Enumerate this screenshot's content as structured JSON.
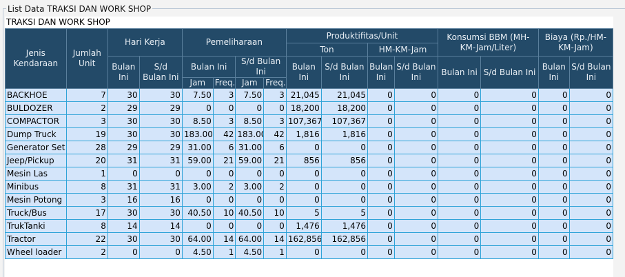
{
  "window": {
    "legend": "List Data TRAKSI DAN WORK SHOP"
  },
  "panel": {
    "title": "TRAKSI DAN WORK SHOP"
  },
  "headers": {
    "jenis": "Jenis Kendaraan",
    "jumlah": "Jumlah Unit",
    "hari_kerja": "Hari Kerja",
    "pemeliharaan": "Pemeliharaan",
    "produktifitas": "Produktifitas/Unit",
    "ton": "Ton",
    "hm_km_jam": "HM-KM-Jam",
    "konsumsi": "Konsumsi BBM (MH-KM-Jam/Liter)",
    "biaya": "Biaya (Rp./HM-KM-Jam)",
    "bulan_ini": "Bulan Ini",
    "sd_bulan_ini": "S/d Bulan Ini",
    "jam": "Jam",
    "freq": "Freq."
  },
  "rows": [
    [
      "BACKHOE",
      "7",
      "30",
      "30",
      "7.50",
      "3",
      "7.50",
      "3",
      "21,045",
      "21,045",
      "0",
      "0",
      "0",
      "0",
      "0",
      "0"
    ],
    [
      "BULDOZER",
      "2",
      "29",
      "29",
      "0",
      "0",
      "0",
      "0",
      "18,200",
      "18,200",
      "0",
      "0",
      "0",
      "0",
      "0",
      "0"
    ],
    [
      "COMPACTOR",
      "3",
      "30",
      "30",
      "8.50",
      "3",
      "8.50",
      "3",
      "107,367",
      "107,367",
      "0",
      "0",
      "0",
      "0",
      "0",
      "0"
    ],
    [
      "Dump Truck",
      "19",
      "30",
      "30",
      "183.00",
      "42",
      "183.00",
      "42",
      "1,816",
      "1,816",
      "0",
      "0",
      "0",
      "0",
      "0",
      "0"
    ],
    [
      "Generator Set",
      "28",
      "29",
      "29",
      "31.00",
      "6",
      "31.00",
      "6",
      "0",
      "0",
      "0",
      "0",
      "0",
      "0",
      "0",
      "0"
    ],
    [
      "Jeep/Pickup",
      "20",
      "31",
      "31",
      "59.00",
      "21",
      "59.00",
      "21",
      "856",
      "856",
      "0",
      "0",
      "0",
      "0",
      "0",
      "0"
    ],
    [
      "Mesin Las",
      "1",
      "0",
      "0",
      "0",
      "0",
      "0",
      "0",
      "0",
      "0",
      "0",
      "0",
      "0",
      "0",
      "0",
      "0"
    ],
    [
      "Minibus",
      "8",
      "31",
      "31",
      "3.00",
      "2",
      "3.00",
      "2",
      "0",
      "0",
      "0",
      "0",
      "0",
      "0",
      "0",
      "0"
    ],
    [
      "Mesin Potong",
      "3",
      "16",
      "16",
      "0",
      "0",
      "0",
      "0",
      "0",
      "0",
      "0",
      "0",
      "0",
      "0",
      "0",
      "0"
    ],
    [
      "Truck/Bus",
      "17",
      "30",
      "30",
      "40.50",
      "10",
      "40.50",
      "10",
      "5",
      "5",
      "0",
      "0",
      "0",
      "0",
      "0",
      "0"
    ],
    [
      "TrukTanki",
      "8",
      "14",
      "14",
      "0",
      "0",
      "0",
      "0",
      "1,476",
      "1,476",
      "0",
      "0",
      "0",
      "0",
      "0",
      "0"
    ],
    [
      "Tractor",
      "22",
      "30",
      "30",
      "64.00",
      "14",
      "64.00",
      "14",
      "162,856",
      "162,856",
      "0",
      "0",
      "0",
      "0",
      "0",
      "0"
    ],
    [
      "Wheel loader",
      "2",
      "0",
      "0",
      "4.50",
      "1",
      "4.50",
      "1",
      "0",
      "0",
      "0",
      "0",
      "0",
      "0",
      "0",
      "0"
    ]
  ]
}
